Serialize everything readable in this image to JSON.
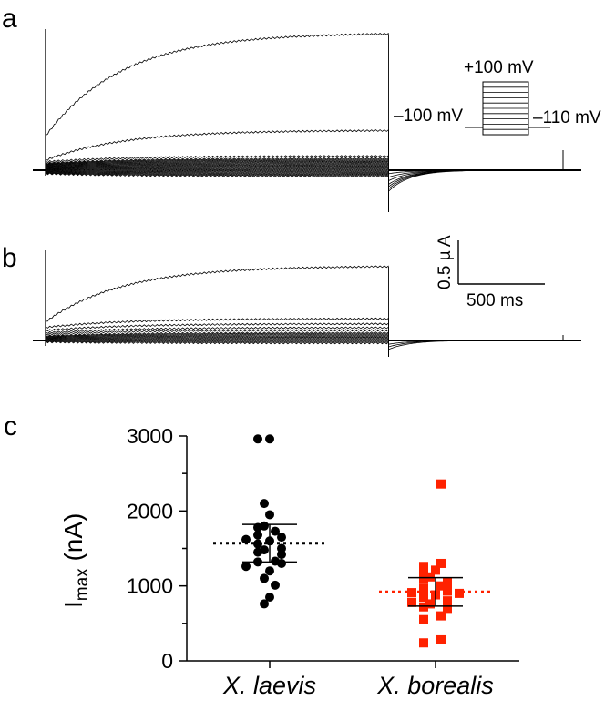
{
  "panels": {
    "a": "a",
    "b": "b",
    "c": "c"
  },
  "protocol": {
    "top_label": "+100 mV",
    "holding_label": "–100 mV",
    "tail_label": "–110 mV"
  },
  "scale_bar": {
    "current_label": "0.5 µ A",
    "time_label": "500 ms"
  },
  "colors": {
    "laevis": "#000000",
    "borealis": "#ff2200",
    "trace": "#000000"
  },
  "chart_data": [
    {
      "type": "line",
      "panel": "a",
      "xlabel": "",
      "ylabel": "",
      "x_unit": "ms",
      "y_unit": "µA",
      "pulse": [
        0,
        1300
      ],
      "record_end": 2030,
      "series_steady_current": [
        1.17,
        0.34,
        0.12,
        0.1,
        0.09,
        0.08,
        0.07,
        0.06,
        0.05,
        0.04,
        0.03,
        0.02,
        0.01,
        0.0,
        -0.01,
        -0.02,
        -0.03,
        -0.04,
        -0.05
      ],
      "series_tail_current": [
        -0.18,
        -0.16,
        -0.14,
        -0.12,
        -0.09,
        -0.06,
        -0.03
      ]
    },
    {
      "type": "line",
      "panel": "b",
      "xlabel": "",
      "ylabel": "",
      "x_unit": "ms",
      "y_unit": "µA",
      "pulse": [
        0,
        1300
      ],
      "record_end": 2030,
      "series_steady_current": [
        0.58,
        0.17,
        0.13,
        0.1,
        0.08,
        0.06,
        0.05,
        0.04,
        0.03,
        0.02,
        0.01,
        0.0,
        -0.01,
        -0.02
      ],
      "series_tail_current": [
        -0.07,
        -0.05,
        -0.03
      ]
    },
    {
      "type": "scatter",
      "panel": "c",
      "categories": [
        "X. laevis",
        "X. borealis"
      ],
      "ylabel": "I",
      "ylabel_sub": "max",
      "ylabel_unit": " (nA)",
      "ylim": [
        0,
        3000
      ],
      "yticks": [
        "0",
        "1000",
        "2000",
        "3000"
      ],
      "series": [
        {
          "values": [
            2960,
            2960,
            2100,
            1950,
            1800,
            1780,
            1730,
            1680,
            1650,
            1620,
            1600,
            1560,
            1500,
            1480,
            1450,
            1420,
            1330,
            1320,
            1300,
            1260,
            1200,
            1100,
            1010,
            850,
            760
          ],
          "mean": 1570,
          "error_upper": 1820,
          "error_lower": 1320
        },
        {
          "values": [
            2360,
            1300,
            1260,
            1210,
            1150,
            1120,
            1100,
            1050,
            1000,
            970,
            930,
            910,
            900,
            880,
            850,
            800,
            780,
            760,
            720,
            700,
            600,
            550,
            280,
            240
          ],
          "mean": 920,
          "error_upper": 1110,
          "error_lower": 730
        }
      ]
    }
  ]
}
